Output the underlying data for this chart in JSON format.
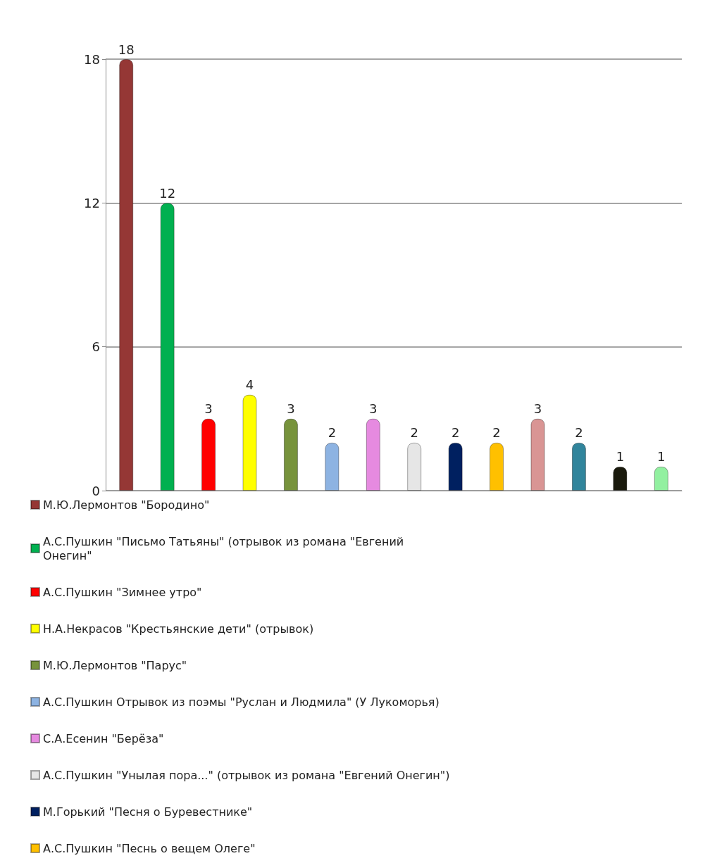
{
  "chart_data": {
    "type": "bar",
    "categories": [
      null,
      null,
      null,
      null,
      null,
      null,
      null,
      null,
      null,
      null,
      null,
      null,
      null,
      null
    ],
    "series": [
      {
        "name": "М.Ю.Лермонтов \"Бородино\"",
        "color": "#953735",
        "values": [
          18,
          null,
          null,
          null,
          null,
          null,
          null,
          null,
          null,
          null,
          null,
          null,
          null,
          null
        ]
      },
      {
        "name": "А.С.Пушкин \"Письмо Татьяны\" (отрывок из романа \"Евгений Онегин\"",
        "color": "#00b050",
        "values": [
          null,
          12,
          null,
          null,
          null,
          null,
          null,
          null,
          null,
          null,
          null,
          null,
          null,
          null
        ]
      },
      {
        "name": "А.С.Пушкин \"Зимнее утро\"",
        "color": "#ff0000",
        "values": [
          null,
          null,
          3,
          null,
          null,
          null,
          null,
          null,
          null,
          null,
          null,
          null,
          null,
          null
        ]
      },
      {
        "name": "Н.А.Некрасов \"Крестьянские дети\" (отрывок)",
        "color": "#ffff00",
        "values": [
          null,
          null,
          null,
          4,
          null,
          null,
          null,
          null,
          null,
          null,
          null,
          null,
          null,
          null
        ]
      },
      {
        "name": "М.Ю.Лермонтов \"Парус\"",
        "color": "#77933c",
        "values": [
          null,
          null,
          null,
          null,
          3,
          null,
          null,
          null,
          null,
          null,
          null,
          null,
          null,
          null
        ]
      },
      {
        "name": "А.С.Пушкин Отрывок из поэмы \"Руслан и Людмила\" (У Лукоморья)",
        "color": "#8db3e2",
        "values": [
          null,
          null,
          null,
          null,
          null,
          2,
          null,
          null,
          null,
          null,
          null,
          null,
          null,
          null
        ]
      },
      {
        "name": "С.А.Есенин \"Берёза\"",
        "color": "#e68ae0",
        "values": [
          null,
          null,
          null,
          null,
          null,
          null,
          3,
          null,
          null,
          null,
          null,
          null,
          null,
          null
        ]
      },
      {
        "name": "А.С.Пушкин \"Унылая пора...\" (отрывок из романа \"Евгений Онегин\")",
        "color": "#e6e6e6",
        "values": [
          null,
          null,
          null,
          null,
          null,
          null,
          null,
          2,
          null,
          null,
          null,
          null,
          null,
          null
        ]
      },
      {
        "name": "М.Горький \"Песня о Буревестнике\"",
        "color": "#002060",
        "values": [
          null,
          null,
          null,
          null,
          null,
          null,
          null,
          null,
          2,
          null,
          null,
          null,
          null,
          null
        ]
      },
      {
        "name": "А.С.Пушкин \"Песнь о вещем Олеге\"",
        "color": "#ffc000",
        "values": [
          null,
          null,
          null,
          null,
          null,
          null,
          null,
          null,
          null,
          2,
          null,
          null,
          null,
          null
        ]
      },
      {
        "color": "#d99594",
        "values": [
          null,
          null,
          null,
          null,
          null,
          null,
          null,
          null,
          null,
          null,
          3,
          null,
          null,
          null
        ]
      },
      {
        "color": "#31859c",
        "values": [
          null,
          null,
          null,
          null,
          null,
          null,
          null,
          null,
          null,
          null,
          null,
          2,
          null,
          null
        ]
      },
      {
        "color": "#1a1a0d",
        "values": [
          null,
          null,
          null,
          null,
          null,
          null,
          null,
          null,
          null,
          null,
          null,
          null,
          1,
          null
        ]
      },
      {
        "color": "#92f0a0",
        "values": [
          null,
          null,
          null,
          null,
          null,
          null,
          null,
          null,
          null,
          null,
          null,
          null,
          null,
          1
        ]
      }
    ],
    "ylim": [
      0,
      18
    ],
    "yticks": [
      0,
      6,
      12,
      18
    ],
    "grid": "y",
    "data_labels": true,
    "legend": "bottom"
  }
}
